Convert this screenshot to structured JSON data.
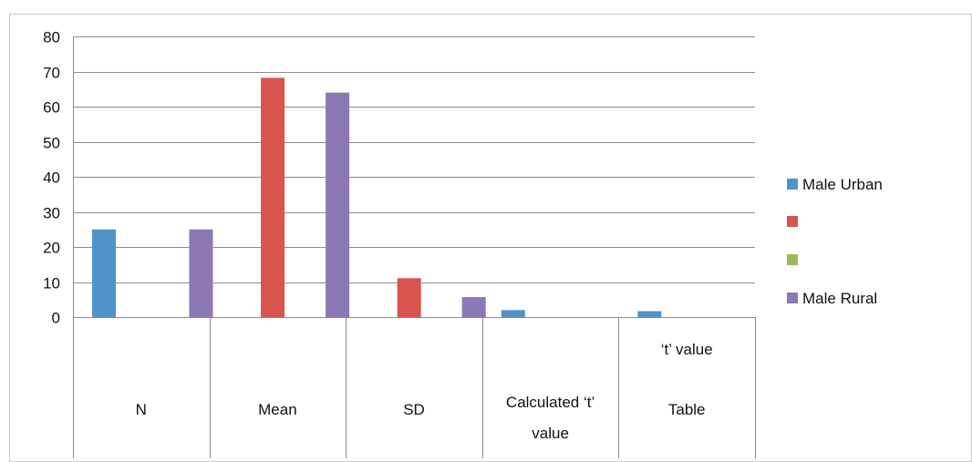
{
  "chart_data": {
    "type": "bar",
    "categories": [
      {
        "lines": [
          "N"
        ]
      },
      {
        "lines": [
          "Mean"
        ]
      },
      {
        "lines": [
          "SD"
        ]
      },
      {
        "lines": [
          "Calculated ‘t’",
          "value"
        ]
      },
      {
        "lines": [
          "‘t’ value",
          "Table"
        ]
      }
    ],
    "series": [
      {
        "name": "Male Urban",
        "color": "#4F93C8",
        "values": [
          25,
          0,
          0,
          2,
          1.7
        ]
      },
      {
        "name": "",
        "color": "#D9534F",
        "values": [
          0,
          68.2,
          11.1,
          0,
          0
        ]
      },
      {
        "name": "",
        "color": "#9BBB59",
        "values": [
          0,
          0,
          0,
          0,
          0
        ]
      },
      {
        "name": "Male  Rural",
        "color": "#8B78B4",
        "values": [
          25,
          64,
          5.7,
          0,
          0
        ]
      }
    ],
    "y_ticks": [
      "0",
      "10",
      "20",
      "30",
      "40",
      "50",
      "60",
      "70",
      "80"
    ],
    "ylim": [
      0,
      80
    ],
    "grid": true,
    "legend_position": "right"
  }
}
